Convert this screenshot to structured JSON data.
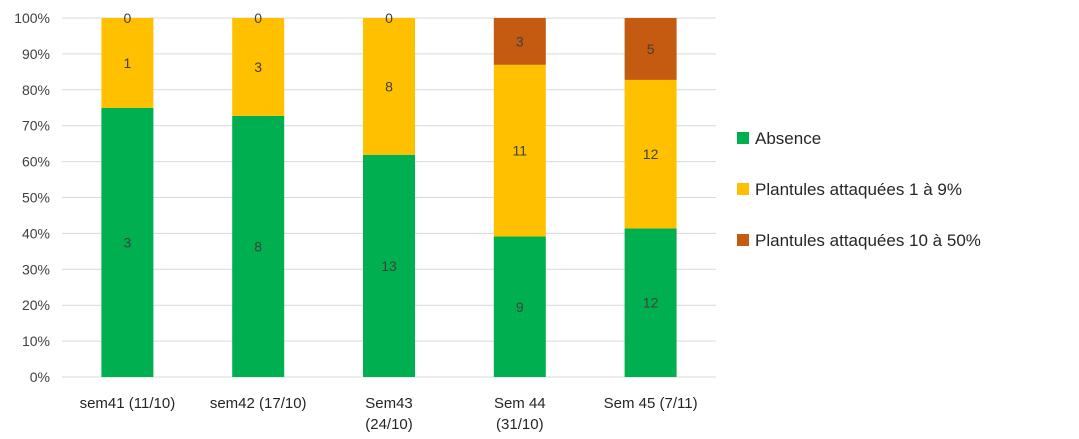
{
  "chart_data": {
    "type": "bar",
    "stacked": "percent",
    "categories": [
      [
        "sem41 (11/10)"
      ],
      [
        "sem42 (17/10)"
      ],
      [
        "Sem43",
        "(24/10)"
      ],
      [
        "Sem 44",
        "(31/10)"
      ],
      [
        "Sem 45 (7/11)"
      ]
    ],
    "series": [
      {
        "name": "Absence",
        "color": "#00b050",
        "values": [
          3,
          8,
          13,
          9,
          12
        ]
      },
      {
        "name": "Plantules attaquées 1 à 9%",
        "color": "#ffc000",
        "values": [
          1,
          3,
          8,
          11,
          12
        ]
      },
      {
        "name": "Plantules attaquées 10 à 50%",
        "color": "#c55a11",
        "values": [
          0,
          0,
          0,
          3,
          5
        ]
      }
    ],
    "yticks": [
      "0%",
      "10%",
      "20%",
      "30%",
      "40%",
      "50%",
      "60%",
      "70%",
      "80%",
      "90%",
      "100%"
    ],
    "ylim": [
      0,
      100
    ],
    "grid": true,
    "legend": "right"
  }
}
